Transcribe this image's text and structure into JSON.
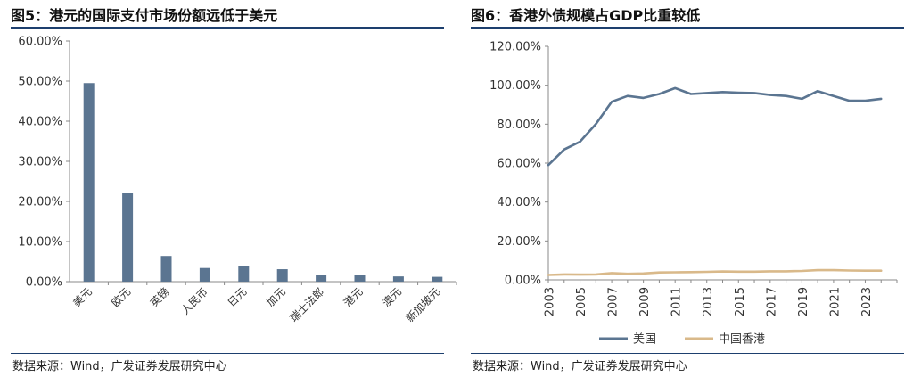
{
  "left": {
    "title": "图5：港元的国际支付市场份额远低于美元",
    "source": "数据来源：Wind，广发证券发展研究中心"
  },
  "right": {
    "title": "图6：香港外债规模占GDP比重较低",
    "source": "数据来源：Wind，广发证券发展研究中心"
  },
  "colors": {
    "bar": "#5b7591",
    "us": "#5b7591",
    "hk": "#d9b98a",
    "axis": "#8a8a8a",
    "rule": "#1d3f6e"
  },
  "chart_data": [
    {
      "type": "bar",
      "title": "图5：港元的国际支付市场份额远低于美元",
      "categories": [
        "美元",
        "欧元",
        "英镑",
        "人民币",
        "日元",
        "加元",
        "瑞士法郎",
        "港元",
        "澳元",
        "新加坡元"
      ],
      "values": [
        49.5,
        22.1,
        6.4,
        3.4,
        3.9,
        3.1,
        1.7,
        1.6,
        1.3,
        1.2
      ],
      "ylim": [
        0,
        60
      ],
      "yticks": [
        "0.00%",
        "10.00%",
        "20.00%",
        "30.00%",
        "40.00%",
        "50.00%",
        "60.00%"
      ],
      "xlabel": "",
      "ylabel": "",
      "grid": false
    },
    {
      "type": "line",
      "title": "图6：香港外债规模占GDP比重较低",
      "x": [
        2003,
        2004,
        2005,
        2006,
        2007,
        2008,
        2009,
        2010,
        2011,
        2012,
        2013,
        2014,
        2015,
        2016,
        2017,
        2018,
        2019,
        2020,
        2021,
        2022,
        2023,
        2024
      ],
      "xticks": [
        "2003",
        "2005",
        "2007",
        "2009",
        "2011",
        "2013",
        "2015",
        "2017",
        "2019",
        "2021",
        "2023"
      ],
      "series": [
        {
          "name": "美国",
          "values": [
            59,
            67,
            71,
            80,
            91.5,
            94.5,
            93.5,
            95.5,
            98.5,
            95.5,
            96,
            96.5,
            96.2,
            96,
            95,
            94.5,
            93,
            97,
            94.5,
            92,
            92,
            93
          ]
        },
        {
          "name": "中国香港",
          "values": [
            2.5,
            2.8,
            2.7,
            2.8,
            3.5,
            3.1,
            3.3,
            3.8,
            3.9,
            4.0,
            4.1,
            4.3,
            4.2,
            4.2,
            4.4,
            4.4,
            4.6,
            5.0,
            5.0,
            4.8,
            4.7,
            4.7
          ]
        }
      ],
      "ylim": [
        0,
        120
      ],
      "yticks": [
        "0.00%",
        "20.00%",
        "40.00%",
        "60.00%",
        "80.00%",
        "100.00%",
        "120.00%"
      ],
      "legend": "bottom",
      "xlabel": "",
      "ylabel": "",
      "grid": false
    }
  ]
}
